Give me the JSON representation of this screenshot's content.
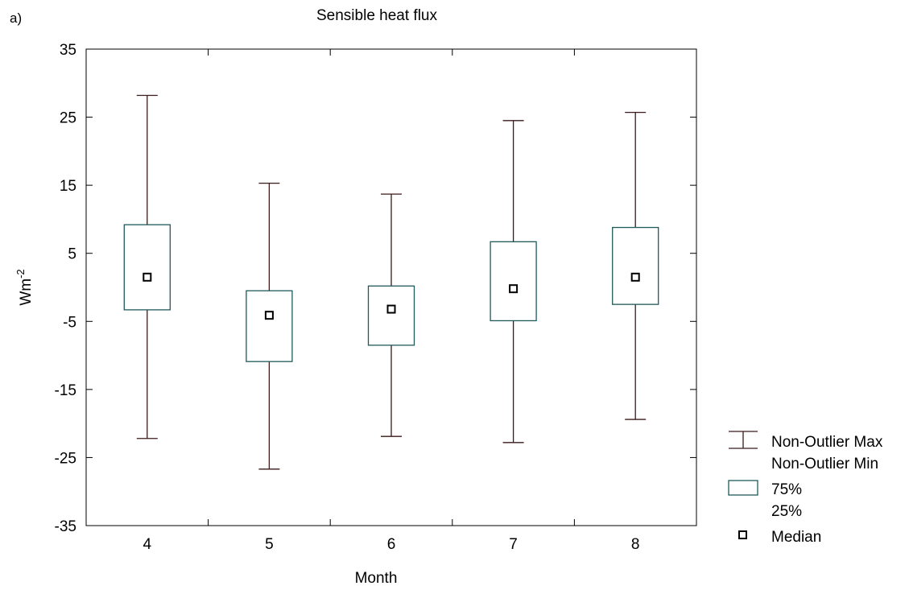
{
  "panel_label": "a)",
  "chart_data": {
    "type": "box",
    "title": "Sensible heat flux",
    "xlabel": "Month",
    "ylabel_base": "Wm",
    "ylabel_exponent": "-2",
    "ylim": [
      -35,
      35
    ],
    "yticks": [
      35,
      25,
      15,
      5,
      -5,
      -15,
      -25,
      -35
    ],
    "categories": [
      "4",
      "5",
      "6",
      "7",
      "8"
    ],
    "boxes": [
      {
        "category": "4",
        "max": 28.2,
        "q3": 9.2,
        "median": 1.5,
        "q1": -3.3,
        "min": -22.2
      },
      {
        "category": "5",
        "max": 15.3,
        "q3": -0.5,
        "median": -4.1,
        "q1": -10.9,
        "min": -26.7
      },
      {
        "category": "6",
        "max": 13.7,
        "q3": 0.2,
        "median": -3.2,
        "q1": -8.5,
        "min": -21.9
      },
      {
        "category": "7",
        "max": 24.5,
        "q3": 6.7,
        "median": -0.2,
        "q1": -4.9,
        "min": -22.8
      },
      {
        "category": "8",
        "max": 25.7,
        "q3": 8.8,
        "median": 1.5,
        "q1": -2.5,
        "min": -19.4
      }
    ],
    "legend": {
      "placement": "right-bottom",
      "whisker_max": "Non-Outlier Max",
      "whisker_min": "Non-Outlier Min",
      "box_upper": "75%",
      "box_lower": "25%",
      "median": "Median"
    },
    "colors": {
      "whisker": "#3a1a1a",
      "box": "#1f5a5a",
      "median": "#000000"
    }
  }
}
